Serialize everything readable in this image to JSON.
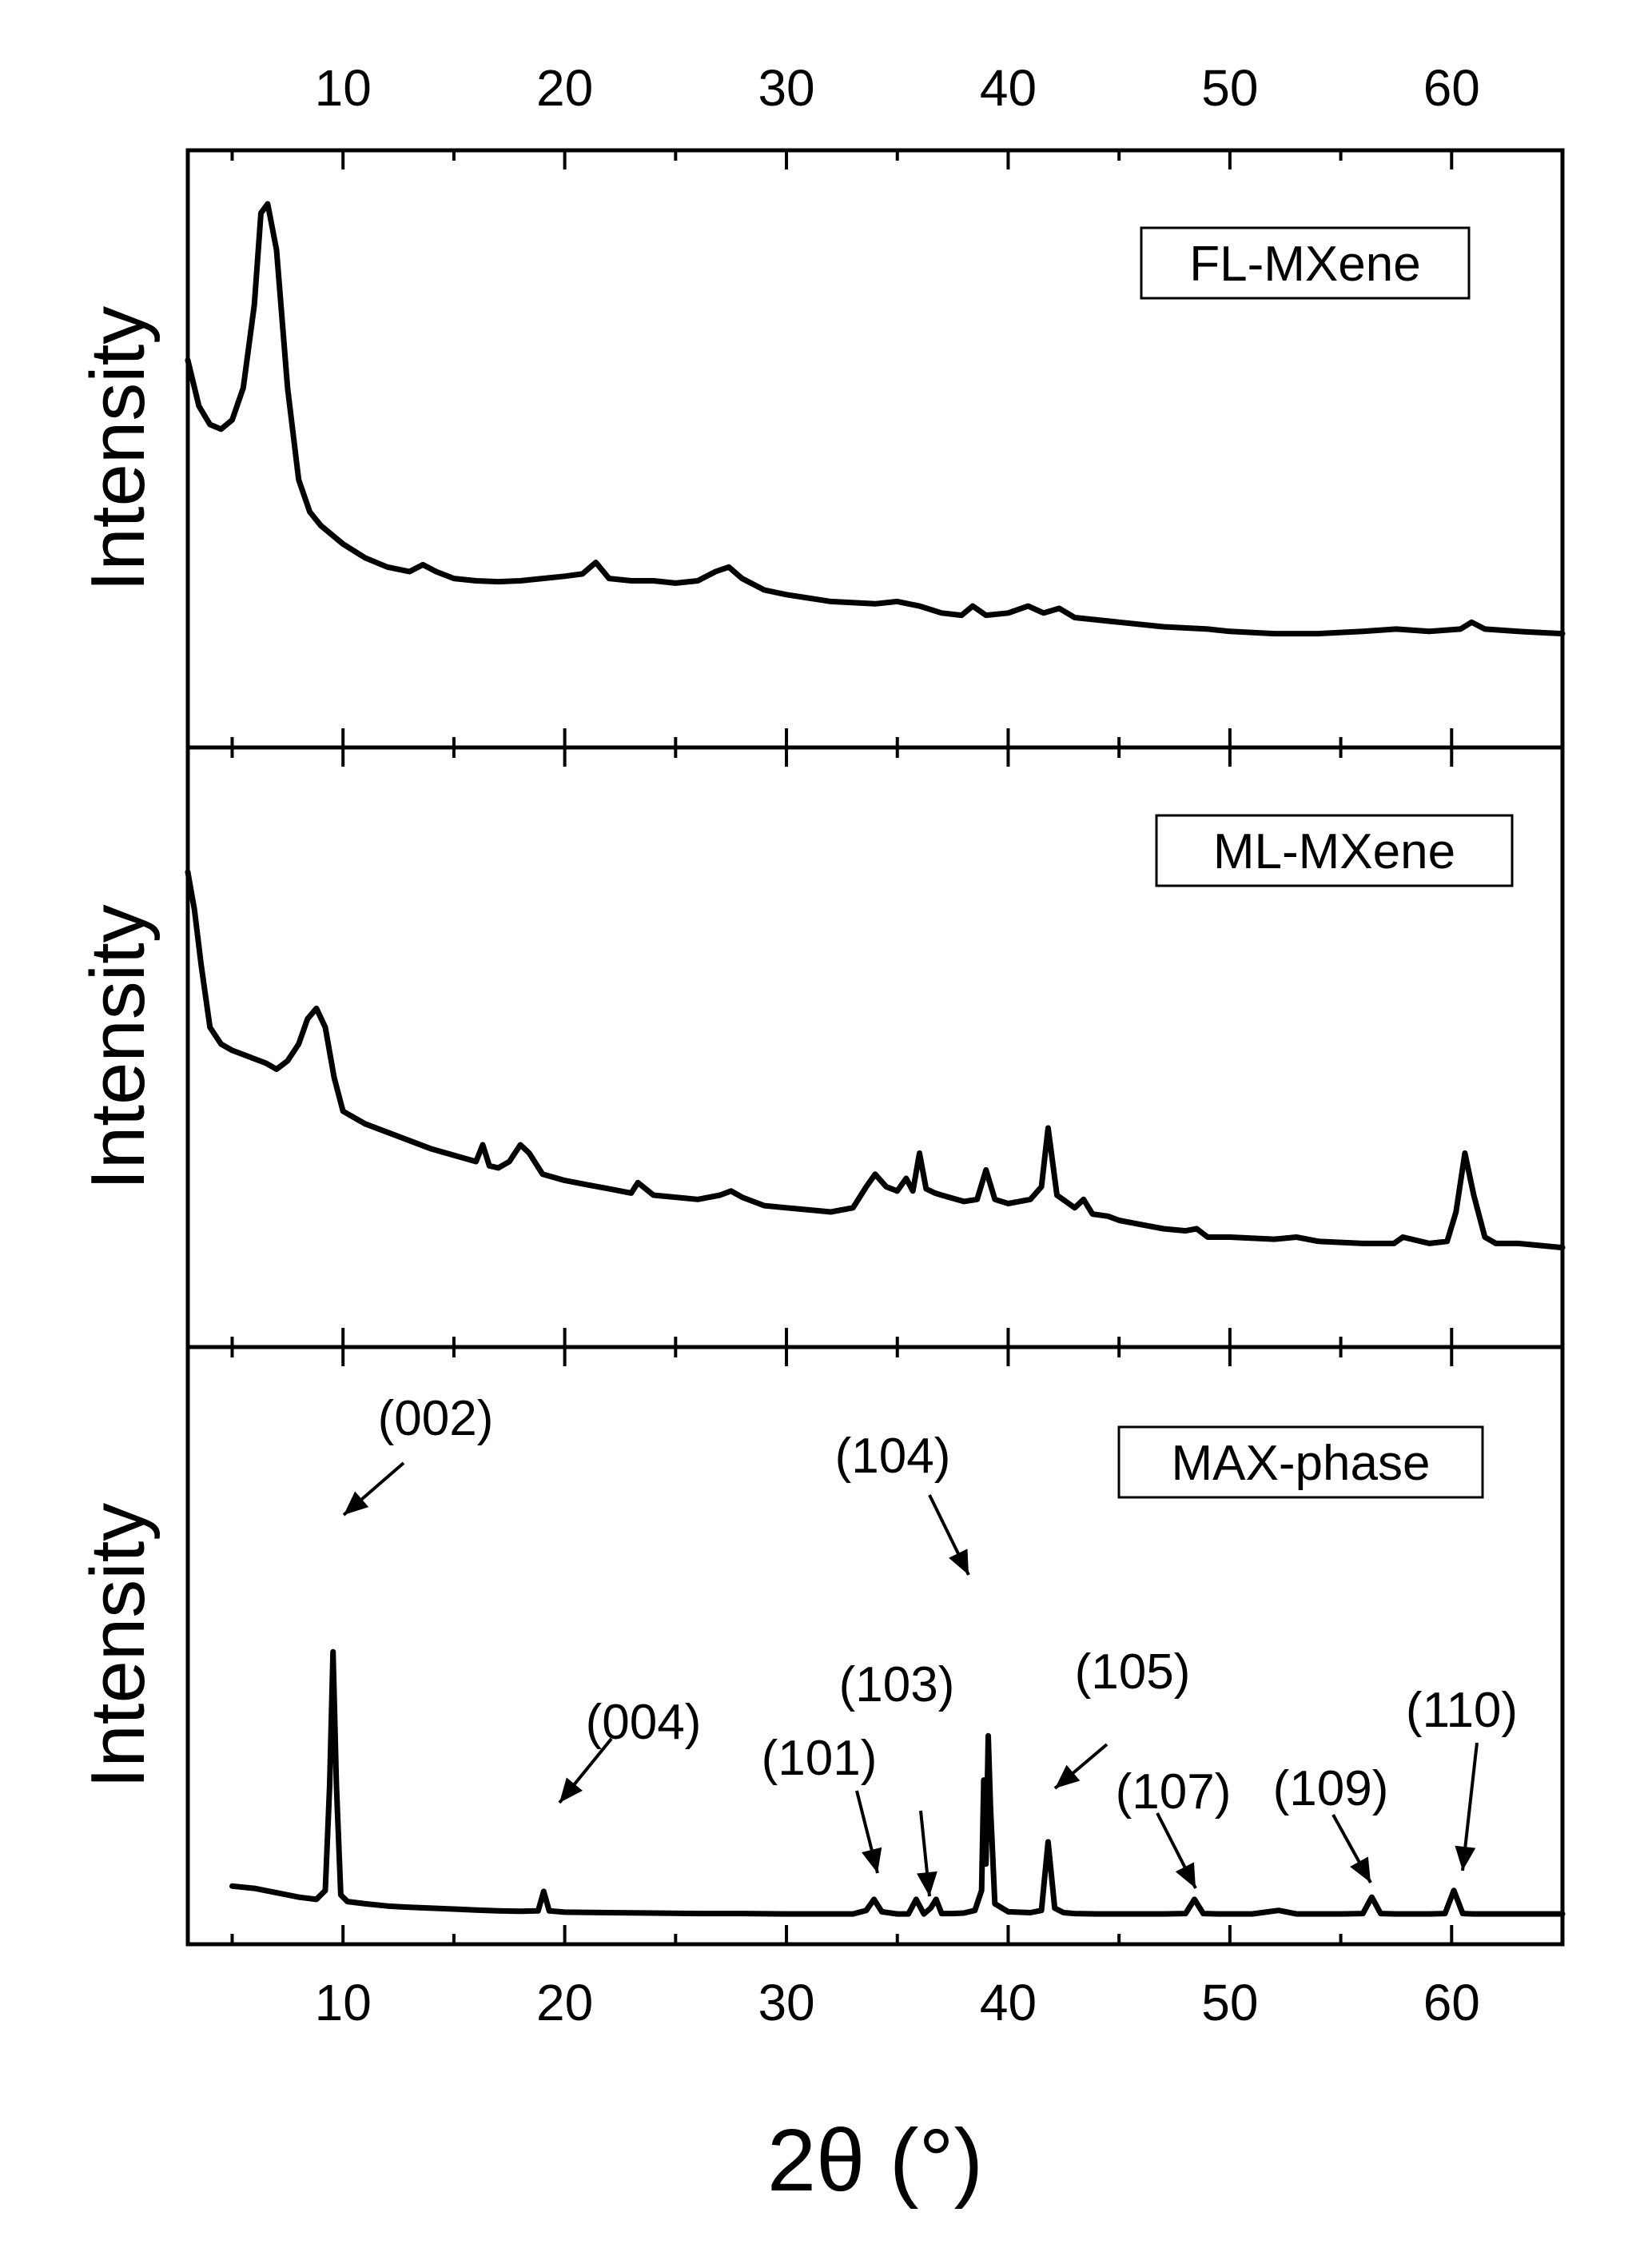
{
  "chart_data": {
    "type": "line",
    "xlabel": "2θ (°)",
    "xlim": [
      3,
      65
    ],
    "x_ticks": [
      10,
      20,
      30,
      40,
      50,
      60
    ],
    "x_tick_labels": [
      "10",
      "20",
      "30",
      "40",
      "50",
      "60"
    ],
    "grid": false,
    "panels": [
      {
        "ylabel": "Intensity",
        "legend": "FL-MXene",
        "legend_position": "top-right",
        "ylim": [
          0,
          1
        ],
        "x": [
          3,
          3.5,
          4,
          4.5,
          5,
          5.5,
          6,
          6.3,
          6.6,
          7,
          7.5,
          8,
          8.5,
          9,
          10,
          11,
          12,
          13,
          13.6,
          14.2,
          15,
          16,
          17,
          18,
          19,
          20,
          20.8,
          21.4,
          22,
          23,
          24,
          25,
          26,
          26.8,
          27.4,
          28,
          29,
          30,
          32,
          34,
          35,
          36,
          37,
          37.9,
          38.4,
          39,
          40,
          40.9,
          41.6,
          42.3,
          43,
          45,
          47,
          49,
          50,
          52,
          54,
          56,
          57.5,
          59,
          60.4,
          60.9,
          61.5,
          63,
          65
        ],
        "y": [
          0.66,
          0.56,
          0.52,
          0.51,
          0.53,
          0.6,
          0.78,
          0.98,
          1.0,
          0.9,
          0.6,
          0.4,
          0.33,
          0.3,
          0.26,
          0.23,
          0.21,
          0.2,
          0.215,
          0.2,
          0.185,
          0.18,
          0.178,
          0.18,
          0.185,
          0.19,
          0.195,
          0.22,
          0.185,
          0.18,
          0.18,
          0.175,
          0.18,
          0.2,
          0.21,
          0.185,
          0.16,
          0.15,
          0.135,
          0.13,
          0.135,
          0.125,
          0.11,
          0.105,
          0.125,
          0.105,
          0.11,
          0.125,
          0.11,
          0.12,
          0.1,
          0.09,
          0.08,
          0.075,
          0.07,
          0.065,
          0.065,
          0.07,
          0.075,
          0.07,
          0.075,
          0.09,
          0.075,
          0.07,
          0.065
        ]
      },
      {
        "ylabel": "Intensity",
        "legend": "ML-MXene",
        "legend_position": "top-right",
        "ylim": [
          0,
          1
        ],
        "x": [
          3,
          3.3,
          3.6,
          4,
          4.5,
          5,
          5.5,
          6,
          6.5,
          7,
          7.5,
          8,
          8.4,
          8.8,
          9.2,
          9.6,
          10,
          11,
          12,
          13,
          14,
          15,
          16,
          16.3,
          16.6,
          17,
          17.5,
          18,
          18.4,
          19,
          20,
          21,
          22,
          23,
          23.3,
          24,
          25,
          26,
          27,
          27.5,
          28,
          29,
          30,
          31,
          32,
          33,
          33.6,
          34,
          34.5,
          35,
          35.4,
          35.7,
          36,
          36.3,
          36.7,
          37,
          38,
          38.6,
          39,
          39.4,
          40,
          41,
          41.5,
          41.8,
          42.2,
          43,
          43.4,
          43.8,
          44.5,
          45,
          46,
          47,
          48,
          48.5,
          49,
          50,
          52,
          53,
          54,
          56,
          57.4,
          57.8,
          59,
          59.8,
          60.2,
          60.6,
          61,
          61.5,
          62,
          63,
          64,
          65
        ],
        "y": [
          0.97,
          0.88,
          0.75,
          0.6,
          0.56,
          0.545,
          0.535,
          0.525,
          0.515,
          0.5,
          0.52,
          0.56,
          0.62,
          0.645,
          0.6,
          0.48,
          0.4,
          0.37,
          0.35,
          0.33,
          0.31,
          0.295,
          0.28,
          0.32,
          0.27,
          0.265,
          0.28,
          0.32,
          0.3,
          0.25,
          0.235,
          0.225,
          0.215,
          0.205,
          0.23,
          0.2,
          0.195,
          0.19,
          0.2,
          0.21,
          0.195,
          0.175,
          0.17,
          0.165,
          0.16,
          0.17,
          0.22,
          0.25,
          0.22,
          0.21,
          0.24,
          0.21,
          0.3,
          0.215,
          0.205,
          0.2,
          0.185,
          0.19,
          0.26,
          0.19,
          0.18,
          0.19,
          0.22,
          0.36,
          0.2,
          0.17,
          0.19,
          0.155,
          0.15,
          0.14,
          0.13,
          0.12,
          0.115,
          0.12,
          0.1,
          0.1,
          0.095,
          0.1,
          0.09,
          0.085,
          0.085,
          0.1,
          0.085,
          0.09,
          0.16,
          0.3,
          0.2,
          0.1,
          0.085,
          0.085,
          0.08,
          0.075
        ]
      },
      {
        "ylabel": "Intensity",
        "legend": "MAX-phase",
        "legend_position": "top-right",
        "ylim": [
          0,
          1
        ],
        "x": [
          5,
          6,
          7,
          8,
          8.8,
          9.2,
          9.4,
          9.55,
          9.7,
          9.9,
          10.2,
          11,
          12,
          13,
          14,
          15,
          16,
          17,
          18,
          18.8,
          19.05,
          19.3,
          20,
          22,
          24,
          26,
          28,
          30,
          32,
          33,
          33.6,
          33.95,
          34.3,
          35,
          35.5,
          35.85,
          36.2,
          36.5,
          36.75,
          37,
          37.5,
          38,
          38.5,
          38.8,
          38.9,
          39,
          39.1,
          39.2,
          39.4,
          40,
          41,
          41.5,
          41.8,
          42.1,
          42.5,
          43,
          44,
          45,
          46,
          47,
          48,
          48.4,
          48.8,
          49.5,
          50,
          51,
          52.2,
          53,
          54,
          55,
          56,
          56.4,
          56.8,
          57.5,
          58,
          59,
          59.7,
          60.1,
          60.5,
          61,
          62,
          63,
          64,
          65
        ],
        "y": [
          0.07,
          0.065,
          0.055,
          0.045,
          0.04,
          0.06,
          0.3,
          0.6,
          0.3,
          0.05,
          0.035,
          0.03,
          0.025,
          0.022,
          0.02,
          0.018,
          0.016,
          0.014,
          0.013,
          0.014,
          0.058,
          0.014,
          0.011,
          0.01,
          0.009,
          0.008,
          0.008,
          0.007,
          0.007,
          0.007,
          0.015,
          0.04,
          0.012,
          0.007,
          0.007,
          0.04,
          0.007,
          0.02,
          0.04,
          0.008,
          0.008,
          0.009,
          0.015,
          0.06,
          0.31,
          0.12,
          0.41,
          0.25,
          0.03,
          0.012,
          0.01,
          0.015,
          0.17,
          0.02,
          0.01,
          0.008,
          0.007,
          0.007,
          0.007,
          0.007,
          0.008,
          0.04,
          0.008,
          0.007,
          0.007,
          0.007,
          0.015,
          0.007,
          0.007,
          0.007,
          0.008,
          0.045,
          0.008,
          0.007,
          0.007,
          0.007,
          0.008,
          0.06,
          0.008,
          0.007,
          0.007,
          0.007,
          0.007,
          0.007
        ],
        "annotations": [
          {
            "text": "(002)",
            "x": 9.55
          },
          {
            "text": "(004)",
            "x": 19.05
          },
          {
            "text": "(101)",
            "x": 33.95
          },
          {
            "text": "(103)",
            "x": 36.2
          },
          {
            "text": "(104)",
            "x": 38.9
          },
          {
            "text": "(105)",
            "x": 41.8
          },
          {
            "text": "(107)",
            "x": 48.4
          },
          {
            "text": "(109)",
            "x": 56.4
          },
          {
            "text": "(110)",
            "x": 60.1
          }
        ]
      }
    ]
  }
}
